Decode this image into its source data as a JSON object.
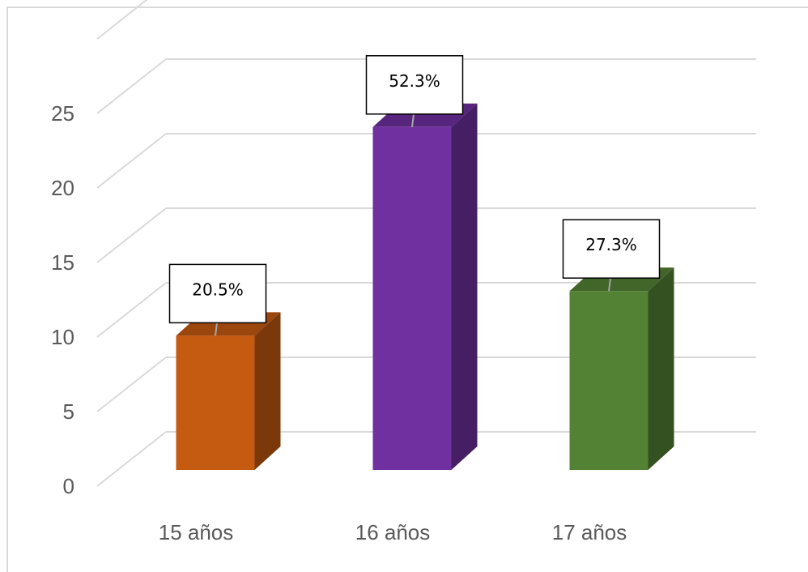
{
  "chart_data": {
    "type": "bar",
    "categories": [
      "15 años",
      "16 años",
      "17 años"
    ],
    "values": [
      9,
      23,
      12
    ],
    "data_labels": [
      "20.5%",
      "52.3%",
      "27.3%"
    ],
    "colors": [
      "#C55A11",
      "#7030A0",
      "#548235"
    ],
    "ylim": [
      0,
      25
    ],
    "yticks": [
      0,
      5,
      10,
      15,
      20,
      25
    ],
    "grid": true,
    "title": "",
    "xlabel": "",
    "ylabel": ""
  }
}
